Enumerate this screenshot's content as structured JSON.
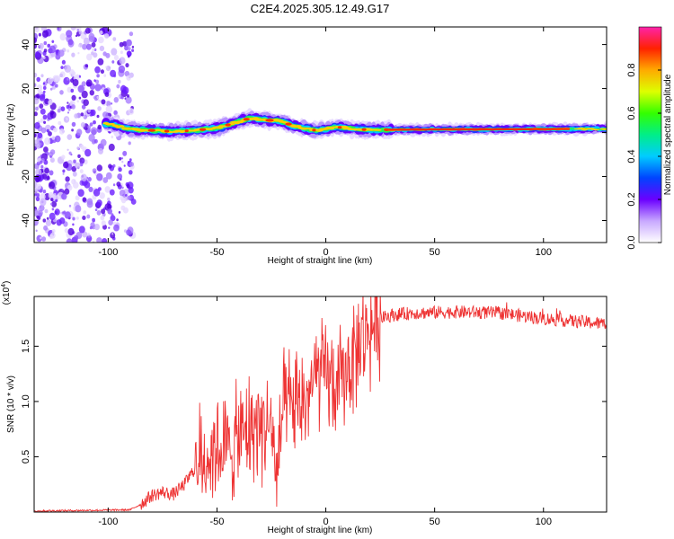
{
  "figure_title": "C2E4.2025.305.12.49.G17",
  "chart_data": [
    {
      "type": "heatmap",
      "xlabel": "Height of straight line (km)",
      "ylabel": "Frequency (Hz)",
      "xlim": [
        -134,
        129
      ],
      "ylim": [
        -50,
        48
      ],
      "xticks": [
        -100,
        -50,
        0,
        50,
        100
      ],
      "yticks": [
        40,
        20,
        0,
        -20,
        -40
      ],
      "noise_region": [
        -134,
        -88
      ],
      "ridge": {
        "x": [
          -100,
          -90,
          -80,
          -70,
          -60,
          -50,
          -45,
          -40,
          -35,
          -30,
          -25,
          -20,
          -15,
          -10,
          -5,
          0,
          5,
          10,
          15,
          20,
          30,
          50,
          80,
          110,
          129
        ],
        "y": [
          4,
          1.5,
          1,
          0.5,
          1,
          2,
          3.5,
          5,
          6.5,
          6,
          5.5,
          5,
          3,
          2,
          1,
          1.5,
          2.5,
          2,
          1.5,
          1.2,
          1.3,
          1.4,
          1.5,
          1.6,
          1.7
        ]
      },
      "colorbar": {
        "label": "Normalized spectral amplitude",
        "range": [
          0,
          1
        ],
        "ticks": [
          0.0,
          0.2,
          0.4,
          0.6,
          0.8
        ],
        "tick_labels": [
          "0.0",
          "0.2",
          "0.4",
          "0.6",
          "0.8"
        ]
      }
    },
    {
      "type": "line",
      "xlabel": "Height of straight line (km)",
      "ylabel": "SNR (10 * v/v)",
      "multiplier": "(x10",
      "multiplier_exp": "4",
      "multiplier_close": ")",
      "xlim": [
        -134,
        129
      ],
      "ylim": [
        0,
        0.195
      ],
      "xticks": [
        -100,
        -50,
        0,
        50,
        100
      ],
      "yticks": [
        0.05,
        0.1,
        0.15
      ],
      "ytick_labels": [
        "0.5",
        "1.0",
        "1.5"
      ],
      "color": "#ee3333",
      "envelope": {
        "x": [
          -134,
          -90,
          -85,
          -80,
          -75,
          -70,
          -65,
          -60,
          -55,
          -50,
          -45,
          -40,
          -35,
          -30,
          -25,
          -22,
          -21,
          -20,
          -15,
          -10,
          -5,
          0,
          5,
          10,
          15,
          18,
          20,
          25,
          30,
          40,
          60,
          80,
          100,
          129
        ],
        "y": [
          0.001,
          0.002,
          0.007,
          0.015,
          0.018,
          0.016,
          0.025,
          0.04,
          0.05,
          0.06,
          0.055,
          0.065,
          0.075,
          0.08,
          0.078,
          0.02,
          0.07,
          0.09,
          0.095,
          0.1,
          0.12,
          0.125,
          0.11,
          0.13,
          0.15,
          0.16,
          0.165,
          0.175,
          0.178,
          0.18,
          0.181,
          0.18,
          0.175,
          0.17
        ]
      }
    }
  ]
}
